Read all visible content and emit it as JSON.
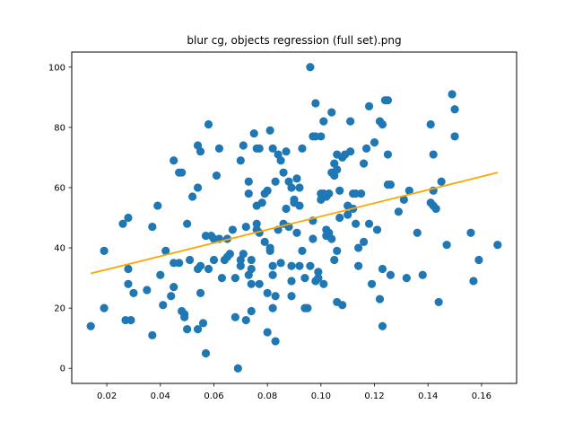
{
  "chart_data": {
    "type": "scatter",
    "title": "blur cg, objects regression (full set).png",
    "xlabel": "",
    "ylabel": "",
    "xlim": [
      0.0069,
      0.1731
    ],
    "ylim": [
      -5,
      105
    ],
    "xticks": [
      0.02,
      0.04,
      0.06,
      0.08,
      0.1,
      0.12,
      0.14,
      0.16
    ],
    "xtick_labels": [
      "0.02",
      "0.04",
      "0.06",
      "0.08",
      "0.10",
      "0.12",
      "0.14",
      "0.16"
    ],
    "yticks": [
      0,
      20,
      40,
      60,
      80,
      100
    ],
    "ytick_labels": [
      "0",
      "20",
      "40",
      "60",
      "80",
      "100"
    ],
    "grid": false,
    "point_color": "#1f77b4",
    "line_color": "#ffa500",
    "regression": {
      "x": [
        0.014,
        0.166
      ],
      "y": [
        31.5,
        65
      ]
    },
    "points": [
      [
        0.014,
        14
      ],
      [
        0.019,
        39
      ],
      [
        0.019,
        20
      ],
      [
        0.026,
        48
      ],
      [
        0.027,
        16
      ],
      [
        0.028,
        50
      ],
      [
        0.028,
        28
      ],
      [
        0.028,
        33
      ],
      [
        0.029,
        16
      ],
      [
        0.03,
        25
      ],
      [
        0.035,
        26
      ],
      [
        0.037,
        11
      ],
      [
        0.037,
        47
      ],
      [
        0.039,
        54
      ],
      [
        0.04,
        31
      ],
      [
        0.041,
        21
      ],
      [
        0.042,
        39
      ],
      [
        0.044,
        24
      ],
      [
        0.045,
        69
      ],
      [
        0.045,
        35
      ],
      [
        0.045,
        27
      ],
      [
        0.047,
        65
      ],
      [
        0.047,
        35
      ],
      [
        0.048,
        19
      ],
      [
        0.048,
        65
      ],
      [
        0.049,
        17
      ],
      [
        0.049,
        18
      ],
      [
        0.05,
        48
      ],
      [
        0.05,
        13
      ],
      [
        0.051,
        36
      ],
      [
        0.052,
        57
      ],
      [
        0.054,
        74
      ],
      [
        0.054,
        60
      ],
      [
        0.054,
        33
      ],
      [
        0.054,
        13
      ],
      [
        0.055,
        72
      ],
      [
        0.055,
        34
      ],
      [
        0.055,
        25
      ],
      [
        0.056,
        15
      ],
      [
        0.057,
        5
      ],
      [
        0.057,
        44
      ],
      [
        0.058,
        33
      ],
      [
        0.058,
        81
      ],
      [
        0.059,
        44
      ],
      [
        0.06,
        43
      ],
      [
        0.06,
        36
      ],
      [
        0.061,
        64
      ],
      [
        0.062,
        73
      ],
      [
        0.062,
        43
      ],
      [
        0.063,
        30
      ],
      [
        0.064,
        36
      ],
      [
        0.065,
        43
      ],
      [
        0.065,
        37
      ],
      [
        0.066,
        38
      ],
      [
        0.067,
        46
      ],
      [
        0.068,
        30
      ],
      [
        0.068,
        17
      ],
      [
        0.069,
        0
      ],
      [
        0.07,
        69
      ],
      [
        0.07,
        36
      ],
      [
        0.07,
        34
      ],
      [
        0.071,
        74
      ],
      [
        0.071,
        38
      ],
      [
        0.072,
        16
      ],
      [
        0.072,
        47
      ],
      [
        0.073,
        58
      ],
      [
        0.073,
        62
      ],
      [
        0.073,
        31
      ],
      [
        0.074,
        19
      ],
      [
        0.074,
        36
      ],
      [
        0.074,
        28
      ],
      [
        0.074,
        33
      ],
      [
        0.075,
        78
      ],
      [
        0.076,
        73
      ],
      [
        0.076,
        54
      ],
      [
        0.076,
        46
      ],
      [
        0.076,
        48
      ],
      [
        0.077,
        45
      ],
      [
        0.077,
        73
      ],
      [
        0.077,
        28
      ],
      [
        0.078,
        55
      ],
      [
        0.079,
        58
      ],
      [
        0.079,
        42
      ],
      [
        0.08,
        59
      ],
      [
        0.08,
        25
      ],
      [
        0.08,
        12
      ],
      [
        0.081,
        79
      ],
      [
        0.081,
        40
      ],
      [
        0.081,
        39
      ],
      [
        0.082,
        73
      ],
      [
        0.082,
        34
      ],
      [
        0.082,
        31
      ],
      [
        0.082,
        20
      ],
      [
        0.083,
        62
      ],
      [
        0.083,
        24
      ],
      [
        0.083,
        9
      ],
      [
        0.084,
        71
      ],
      [
        0.084,
        46
      ],
      [
        0.085,
        69
      ],
      [
        0.085,
        35
      ],
      [
        0.086,
        65
      ],
      [
        0.086,
        48
      ],
      [
        0.087,
        72
      ],
      [
        0.087,
        53
      ],
      [
        0.088,
        47
      ],
      [
        0.088,
        62
      ],
      [
        0.089,
        60
      ],
      [
        0.089,
        34
      ],
      [
        0.089,
        29
      ],
      [
        0.089,
        24
      ],
      [
        0.09,
        56
      ],
      [
        0.09,
        55
      ],
      [
        0.091,
        63
      ],
      [
        0.091,
        45
      ],
      [
        0.092,
        60
      ],
      [
        0.092,
        54
      ],
      [
        0.092,
        34
      ],
      [
        0.093,
        73
      ],
      [
        0.093,
        39
      ],
      [
        0.094,
        20
      ],
      [
        0.094,
        30
      ],
      [
        0.095,
        20
      ],
      [
        0.096,
        100
      ],
      [
        0.096,
        34
      ],
      [
        0.097,
        77
      ],
      [
        0.097,
        43
      ],
      [
        0.097,
        49
      ],
      [
        0.098,
        77
      ],
      [
        0.098,
        88
      ],
      [
        0.098,
        29
      ],
      [
        0.099,
        30
      ],
      [
        0.099,
        32
      ],
      [
        0.1,
        56
      ],
      [
        0.1,
        58
      ],
      [
        0.1,
        77
      ],
      [
        0.101,
        82
      ],
      [
        0.101,
        58
      ],
      [
        0.101,
        28
      ],
      [
        0.102,
        46
      ],
      [
        0.102,
        57
      ],
      [
        0.102,
        44
      ],
      [
        0.103,
        58
      ],
      [
        0.103,
        45
      ],
      [
        0.104,
        85
      ],
      [
        0.104,
        65
      ],
      [
        0.104,
        43
      ],
      [
        0.105,
        68
      ],
      [
        0.105,
        64
      ],
      [
        0.105,
        36
      ],
      [
        0.106,
        71
      ],
      [
        0.106,
        39
      ],
      [
        0.106,
        66
      ],
      [
        0.106,
        22
      ],
      [
        0.107,
        59
      ],
      [
        0.107,
        50
      ],
      [
        0.108,
        70
      ],
      [
        0.108,
        21
      ],
      [
        0.109,
        71
      ],
      [
        0.11,
        51
      ],
      [
        0.11,
        54
      ],
      [
        0.111,
        72
      ],
      [
        0.111,
        82
      ],
      [
        0.112,
        58
      ],
      [
        0.112,
        53
      ],
      [
        0.113,
        48
      ],
      [
        0.113,
        58
      ],
      [
        0.114,
        34
      ],
      [
        0.114,
        40
      ],
      [
        0.115,
        58
      ],
      [
        0.116,
        42
      ],
      [
        0.116,
        68
      ],
      [
        0.117,
        73
      ],
      [
        0.118,
        87
      ],
      [
        0.118,
        48
      ],
      [
        0.119,
        28
      ],
      [
        0.12,
        75
      ],
      [
        0.121,
        46
      ],
      [
        0.122,
        82
      ],
      [
        0.122,
        23
      ],
      [
        0.123,
        14
      ],
      [
        0.123,
        81
      ],
      [
        0.123,
        33
      ],
      [
        0.124,
        89
      ],
      [
        0.125,
        89
      ],
      [
        0.125,
        61
      ],
      [
        0.125,
        71
      ],
      [
        0.126,
        31
      ],
      [
        0.126,
        61
      ],
      [
        0.129,
        52
      ],
      [
        0.131,
        56
      ],
      [
        0.132,
        30
      ],
      [
        0.133,
        59
      ],
      [
        0.136,
        45
      ],
      [
        0.138,
        31
      ],
      [
        0.141,
        55
      ],
      [
        0.141,
        81
      ],
      [
        0.142,
        59
      ],
      [
        0.142,
        71
      ],
      [
        0.142,
        54
      ],
      [
        0.143,
        53
      ],
      [
        0.144,
        22
      ],
      [
        0.145,
        62
      ],
      [
        0.147,
        41
      ],
      [
        0.149,
        91
      ],
      [
        0.15,
        77
      ],
      [
        0.15,
        86
      ],
      [
        0.156,
        45
      ],
      [
        0.157,
        29
      ],
      [
        0.159,
        36
      ],
      [
        0.166,
        41
      ]
    ]
  }
}
